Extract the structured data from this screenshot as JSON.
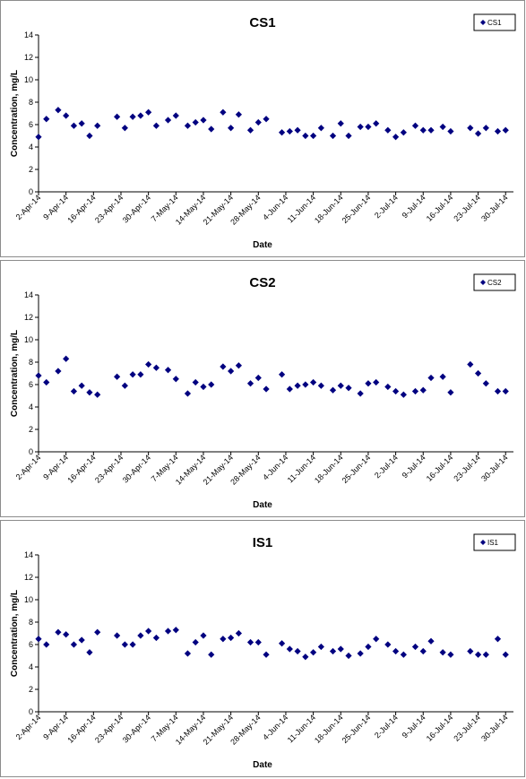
{
  "chart_data": [
    {
      "type": "scatter",
      "title": "CS1",
      "xlabel": "Date",
      "ylabel": "Concentration, mg/L",
      "ylim": [
        0,
        14
      ],
      "yticks": [
        0,
        2,
        4,
        6,
        8,
        10,
        12,
        14
      ],
      "xlim": [
        "2014-04-02",
        "2014-08-01"
      ],
      "xtick_labels": [
        "2-Apr-14",
        "9-Apr-14",
        "16-Apr-14",
        "23-Apr-14",
        "30-Apr-14",
        "7-May-14",
        "14-May-14",
        "21-May-14",
        "28-May-14",
        "4-Jun-14",
        "11-Jun-14",
        "18-Jun-14",
        "25-Jun-14",
        "2-Jul-14",
        "9-Jul-14",
        "16-Jul-14",
        "23-Jul-14",
        "30-Jul-14"
      ],
      "grid": false,
      "legend": "top-right",
      "marker_color": "#000080",
      "series": [
        {
          "name": "CS1",
          "x": [
            "2014-04-02",
            "2014-04-04",
            "2014-04-07",
            "2014-04-09",
            "2014-04-11",
            "2014-04-13",
            "2014-04-15",
            "2014-04-17",
            "2014-04-22",
            "2014-04-24",
            "2014-04-26",
            "2014-04-28",
            "2014-04-30",
            "2014-05-02",
            "2014-05-05",
            "2014-05-07",
            "2014-05-10",
            "2014-05-12",
            "2014-05-14",
            "2014-05-16",
            "2014-05-19",
            "2014-05-21",
            "2014-05-23",
            "2014-05-26",
            "2014-05-28",
            "2014-05-30",
            "2014-06-03",
            "2014-06-05",
            "2014-06-07",
            "2014-06-09",
            "2014-06-11",
            "2014-06-13",
            "2014-06-16",
            "2014-06-18",
            "2014-06-20",
            "2014-06-23",
            "2014-06-25",
            "2014-06-27",
            "2014-06-30",
            "2014-07-02",
            "2014-07-04",
            "2014-07-07",
            "2014-07-09",
            "2014-07-11",
            "2014-07-14",
            "2014-07-16",
            "2014-07-21",
            "2014-07-23",
            "2014-07-25",
            "2014-07-28",
            "2014-07-30"
          ],
          "y": [
            4.9,
            6.5,
            7.3,
            6.8,
            5.9,
            6.1,
            5.0,
            5.9,
            6.7,
            5.7,
            6.7,
            6.8,
            7.1,
            5.9,
            6.4,
            6.8,
            5.9,
            6.2,
            6.4,
            5.6,
            7.1,
            5.7,
            6.9,
            5.5,
            6.2,
            6.5,
            5.3,
            5.4,
            5.5,
            5.0,
            5.0,
            5.7,
            5.0,
            6.1,
            5.0,
            5.8,
            5.8,
            6.1,
            5.5,
            4.9,
            5.3,
            5.9,
            5.5,
            5.5,
            5.8,
            5.4,
            5.7,
            5.2,
            5.7,
            5.4,
            5.5
          ]
        }
      ]
    },
    {
      "type": "scatter",
      "title": "CS2",
      "xlabel": "Date",
      "ylabel": "Concentration, mg/L",
      "ylim": [
        0,
        14
      ],
      "yticks": [
        0,
        2,
        4,
        6,
        8,
        10,
        12,
        14
      ],
      "xlim": [
        "2014-04-02",
        "2014-08-01"
      ],
      "xtick_labels": [
        "2-Apr-14",
        "9-Apr-14",
        "16-Apr-14",
        "23-Apr-14",
        "30-Apr-14",
        "7-May-14",
        "14-May-14",
        "21-May-14",
        "28-May-14",
        "4-Jun-14",
        "11-Jun-14",
        "18-Jun-14",
        "25-Jun-14",
        "2-Jul-14",
        "9-Jul-14",
        "16-Jul-14",
        "23-Jul-14",
        "30-Jul-14"
      ],
      "grid": false,
      "legend": "top-right",
      "marker_color": "#000080",
      "series": [
        {
          "name": "CS2",
          "x": [
            "2014-04-02",
            "2014-04-04",
            "2014-04-07",
            "2014-04-09",
            "2014-04-11",
            "2014-04-13",
            "2014-04-15",
            "2014-04-17",
            "2014-04-22",
            "2014-04-24",
            "2014-04-26",
            "2014-04-28",
            "2014-04-30",
            "2014-05-02",
            "2014-05-05",
            "2014-05-07",
            "2014-05-10",
            "2014-05-12",
            "2014-05-14",
            "2014-05-16",
            "2014-05-19",
            "2014-05-21",
            "2014-05-23",
            "2014-05-26",
            "2014-05-28",
            "2014-05-30",
            "2014-06-03",
            "2014-06-05",
            "2014-06-07",
            "2014-06-09",
            "2014-06-11",
            "2014-06-13",
            "2014-06-16",
            "2014-06-18",
            "2014-06-20",
            "2014-06-23",
            "2014-06-25",
            "2014-06-27",
            "2014-06-30",
            "2014-07-02",
            "2014-07-04",
            "2014-07-07",
            "2014-07-09",
            "2014-07-11",
            "2014-07-14",
            "2014-07-16",
            "2014-07-21",
            "2014-07-23",
            "2014-07-25",
            "2014-07-28",
            "2014-07-30"
          ],
          "y": [
            6.8,
            6.2,
            7.2,
            8.3,
            5.4,
            5.9,
            5.3,
            5.1,
            6.7,
            5.9,
            6.9,
            6.9,
            7.8,
            7.5,
            7.3,
            6.5,
            5.2,
            6.2,
            5.8,
            6.0,
            7.6,
            7.2,
            7.7,
            6.1,
            6.6,
            5.6,
            6.9,
            5.6,
            5.9,
            6.0,
            6.2,
            5.9,
            5.5,
            5.9,
            5.7,
            5.2,
            6.1,
            6.2,
            5.8,
            5.4,
            5.1,
            5.4,
            5.5,
            6.6,
            6.7,
            5.3,
            7.8,
            7.0,
            6.1,
            5.4,
            5.4
          ]
        }
      ]
    },
    {
      "type": "scatter",
      "title": "IS1",
      "xlabel": "Date",
      "ylabel": "Concentration, mg/L",
      "ylim": [
        0,
        14
      ],
      "yticks": [
        0,
        2,
        4,
        6,
        8,
        10,
        12,
        14
      ],
      "xlim": [
        "2014-04-02",
        "2014-08-01"
      ],
      "xtick_labels": [
        "2-Apr-14",
        "9-Apr-14",
        "16-Apr-14",
        "23-Apr-14",
        "30-Apr-14",
        "7-May-14",
        "14-May-14",
        "21-May-14",
        "28-May-14",
        "4-Jun-14",
        "11-Jun-14",
        "18-Jun-14",
        "25-Jun-14",
        "2-Jul-14",
        "9-Jul-14",
        "16-Jul-14",
        "23-Jul-14",
        "30-Jul-14"
      ],
      "grid": false,
      "legend": "top-right",
      "marker_color": "#000080",
      "series": [
        {
          "name": "IS1",
          "x": [
            "2014-04-02",
            "2014-04-04",
            "2014-04-07",
            "2014-04-09",
            "2014-04-11",
            "2014-04-13",
            "2014-04-15",
            "2014-04-17",
            "2014-04-22",
            "2014-04-24",
            "2014-04-26",
            "2014-04-28",
            "2014-04-30",
            "2014-05-02",
            "2014-05-05",
            "2014-05-07",
            "2014-05-10",
            "2014-05-12",
            "2014-05-14",
            "2014-05-16",
            "2014-05-19",
            "2014-05-21",
            "2014-05-23",
            "2014-05-26",
            "2014-05-28",
            "2014-05-30",
            "2014-06-03",
            "2014-06-05",
            "2014-06-07",
            "2014-06-09",
            "2014-06-11",
            "2014-06-13",
            "2014-06-16",
            "2014-06-18",
            "2014-06-20",
            "2014-06-23",
            "2014-06-25",
            "2014-06-27",
            "2014-06-30",
            "2014-07-02",
            "2014-07-04",
            "2014-07-07",
            "2014-07-09",
            "2014-07-11",
            "2014-07-14",
            "2014-07-16",
            "2014-07-21",
            "2014-07-23",
            "2014-07-25",
            "2014-07-28",
            "2014-07-30"
          ],
          "y": [
            6.5,
            6.0,
            7.1,
            6.9,
            6.0,
            6.4,
            5.3,
            7.1,
            6.8,
            6.0,
            6.0,
            6.8,
            7.2,
            6.6,
            7.2,
            7.3,
            5.2,
            6.2,
            6.8,
            5.1,
            6.5,
            6.6,
            7.0,
            6.2,
            6.2,
            5.1,
            6.1,
            5.6,
            5.4,
            4.9,
            5.3,
            5.8,
            5.4,
            5.6,
            5.0,
            5.2,
            5.8,
            6.5,
            6.0,
            5.4,
            5.1,
            5.8,
            5.4,
            6.3,
            5.3,
            5.1,
            5.4,
            5.1,
            5.1,
            6.5,
            5.1
          ]
        }
      ]
    }
  ]
}
